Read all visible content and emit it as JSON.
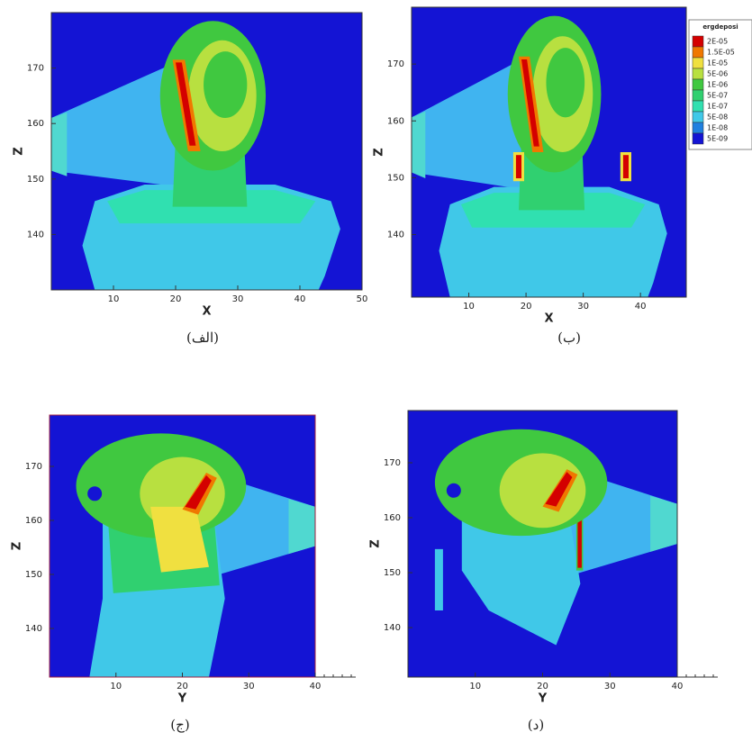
{
  "chart_data": [
    {
      "type": "contour",
      "xlabel": "X",
      "ylabel": "Z",
      "caption": "(الف)",
      "xlim": [
        0,
        50
      ],
      "ylim": [
        130,
        180
      ],
      "xticks": [
        10,
        20,
        30,
        40,
        50
      ],
      "yticks": [
        140,
        150,
        160,
        170
      ]
    },
    {
      "type": "contour",
      "xlabel": "X",
      "ylabel": "Z",
      "caption": "(ب)",
      "xlim": [
        0,
        48
      ],
      "ylim": [
        129,
        180
      ],
      "xticks": [
        10,
        20,
        30,
        40
      ],
      "yticks": [
        140,
        150,
        160,
        170
      ],
      "legend": {
        "title": "ergdeposi",
        "entries": [
          {
            "label": "2E-05",
            "color": "#d40000"
          },
          {
            "label": "1.5E-05",
            "color": "#f07800"
          },
          {
            "label": "1E-05",
            "color": "#f0e040"
          },
          {
            "label": "5E-06",
            "color": "#b8e040"
          },
          {
            "label": "1E-06",
            "color": "#40c840"
          },
          {
            "label": "5E-07",
            "color": "#30d070"
          },
          {
            "label": "1E-07",
            "color": "#30e0b0"
          },
          {
            "label": "5E-08",
            "color": "#40c8e8"
          },
          {
            "label": "1E-08",
            "color": "#2080e0"
          },
          {
            "label": "5E-09",
            "color": "#1414d4"
          }
        ]
      }
    },
    {
      "type": "contour",
      "xlabel": "Y",
      "ylabel": "Z",
      "caption": "(ج)",
      "xlim": [
        0,
        40
      ],
      "ylim": [
        131,
        179.5
      ],
      "xticks": [
        10,
        20,
        30,
        40
      ],
      "yticks": [
        140,
        150,
        160,
        170
      ]
    },
    {
      "type": "contour",
      "xlabel": "Y",
      "ylabel": "Z",
      "caption": "(د)",
      "xlim": [
        0,
        40
      ],
      "ylim": [
        131,
        179.5
      ],
      "xticks": [
        10,
        20,
        30,
        40
      ],
      "yticks": [
        140,
        150,
        160,
        170
      ]
    }
  ]
}
